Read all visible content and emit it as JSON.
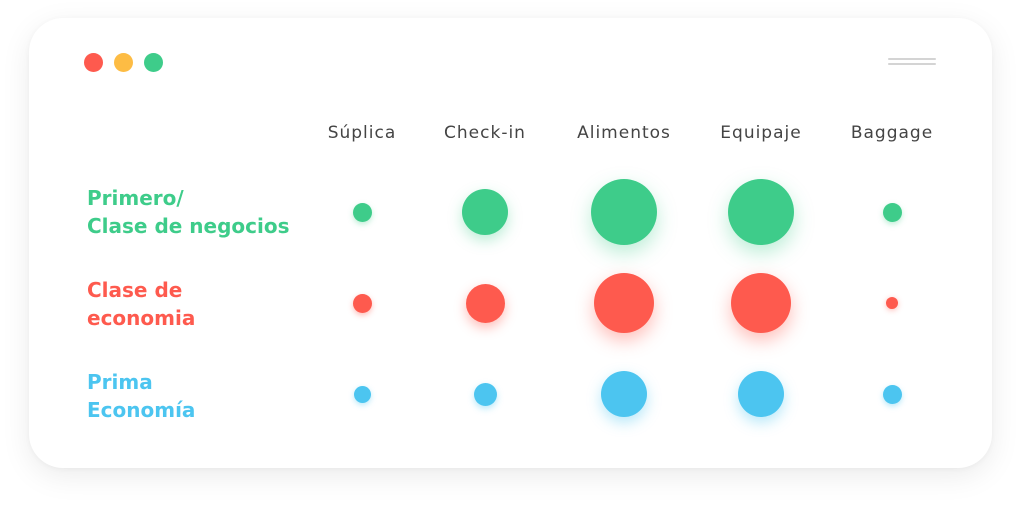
{
  "window": {
    "controls": [
      {
        "name": "close",
        "color": "#fe5a4e"
      },
      {
        "name": "minimize",
        "color": "#fdbc44"
      },
      {
        "name": "maximize",
        "color": "#3ecc8a"
      }
    ],
    "menu_icon": "hamburger-icon"
  },
  "chart_data": {
    "type": "bubble-matrix",
    "title": "",
    "categories": [
      "Súplica",
      "Check-in",
      "Alimentos",
      "Equipaje",
      "Baggage"
    ],
    "series": [
      {
        "name_lines": [
          "Primero/",
          "Clase de negocios"
        ],
        "color": "#3ecc8a",
        "glow": "rgba(62,204,138,0.35)",
        "values": [
          19,
          46,
          66,
          66,
          19
        ]
      },
      {
        "name_lines": [
          "Clase de",
          "economia"
        ],
        "color": "#fe5a4e",
        "glow": "rgba(254,90,78,0.40)",
        "values": [
          19,
          39,
          60,
          60,
          12
        ]
      },
      {
        "name_lines": [
          "Prima",
          "Economía"
        ],
        "color": "#4cc5f0",
        "glow": "rgba(76,197,240,0.40)",
        "values": [
          17,
          23,
          46,
          46,
          19
        ]
      }
    ],
    "value_unit": "relative bubble diameter",
    "grid": false,
    "legend": "row labels at left"
  }
}
